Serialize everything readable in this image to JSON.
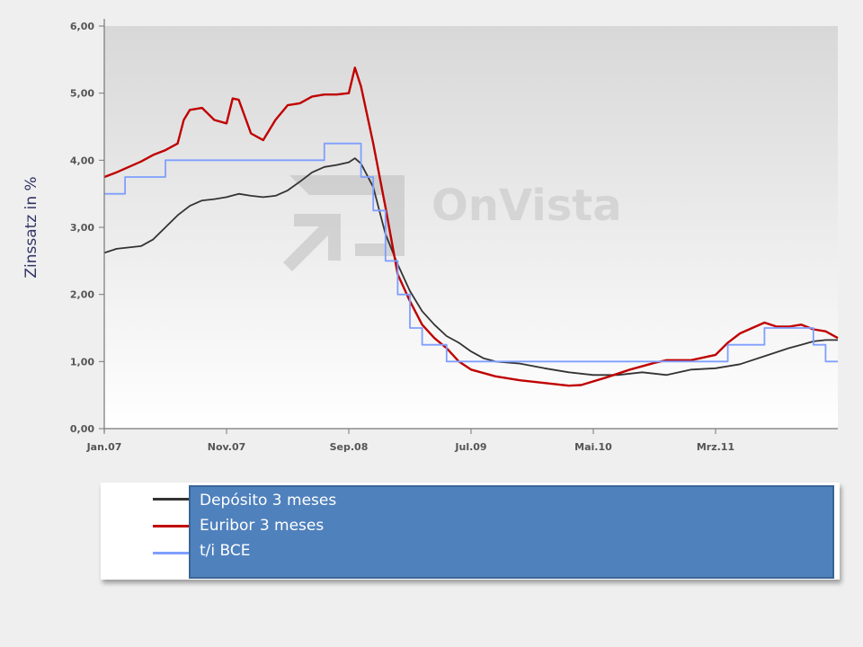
{
  "chart_data": {
    "type": "line",
    "ylabel": "Zinssatz in %",
    "ylim": [
      0,
      6
    ],
    "yticks": [
      "0,00",
      "1,00",
      "2,00",
      "3,00",
      "4,00",
      "5,00",
      "6,00"
    ],
    "xticks": [
      "Jan.07",
      "Nov.07",
      "Sep.08",
      "Jul.09",
      "Mai.10",
      "Mrz.11"
    ],
    "x_range_months": [
      0,
      60
    ],
    "grid": "off",
    "watermark": "OnVista",
    "series": [
      {
        "name": "Depósito 3 meses",
        "color": "#333333",
        "points": [
          [
            0,
            2.62
          ],
          [
            1,
            2.68
          ],
          [
            2,
            2.7
          ],
          [
            3,
            2.72
          ],
          [
            4,
            2.82
          ],
          [
            5,
            3.0
          ],
          [
            6,
            3.18
          ],
          [
            7,
            3.32
          ],
          [
            8,
            3.4
          ],
          [
            9,
            3.42
          ],
          [
            10,
            3.45
          ],
          [
            11,
            3.5
          ],
          [
            12,
            3.47
          ],
          [
            13,
            3.45
          ],
          [
            14,
            3.47
          ],
          [
            15,
            3.55
          ],
          [
            16,
            3.68
          ],
          [
            17,
            3.82
          ],
          [
            18,
            3.9
          ],
          [
            19,
            3.93
          ],
          [
            20,
            3.97
          ],
          [
            20.5,
            4.03
          ],
          [
            21,
            3.95
          ],
          [
            22,
            3.6
          ],
          [
            23,
            2.9
          ],
          [
            24,
            2.45
          ],
          [
            25,
            2.05
          ],
          [
            26,
            1.75
          ],
          [
            27,
            1.55
          ],
          [
            28,
            1.38
          ],
          [
            29,
            1.28
          ],
          [
            30,
            1.15
          ],
          [
            31,
            1.05
          ],
          [
            32,
            1.0
          ],
          [
            34,
            0.97
          ],
          [
            36,
            0.9
          ],
          [
            38,
            0.84
          ],
          [
            40,
            0.8
          ],
          [
            42,
            0.8
          ],
          [
            44,
            0.84
          ],
          [
            46,
            0.8
          ],
          [
            48,
            0.88
          ],
          [
            50,
            0.9
          ],
          [
            52,
            0.96
          ],
          [
            54,
            1.08
          ],
          [
            56,
            1.2
          ],
          [
            57,
            1.25
          ],
          [
            58,
            1.3
          ],
          [
            59,
            1.32
          ],
          [
            60,
            1.32
          ]
        ]
      },
      {
        "name": "Euribor 3 meses",
        "color": "#c00000",
        "points": [
          [
            0,
            3.75
          ],
          [
            1,
            3.82
          ],
          [
            2,
            3.9
          ],
          [
            3,
            3.98
          ],
          [
            4,
            4.08
          ],
          [
            5,
            4.15
          ],
          [
            6,
            4.25
          ],
          [
            6.5,
            4.6
          ],
          [
            7,
            4.75
          ],
          [
            8,
            4.78
          ],
          [
            9,
            4.6
          ],
          [
            10,
            4.55
          ],
          [
            10.5,
            4.92
          ],
          [
            11,
            4.9
          ],
          [
            12,
            4.4
          ],
          [
            13,
            4.3
          ],
          [
            14,
            4.6
          ],
          [
            15,
            4.82
          ],
          [
            16,
            4.85
          ],
          [
            17,
            4.95
          ],
          [
            18,
            4.98
          ],
          [
            19,
            4.98
          ],
          [
            20,
            5.0
          ],
          [
            20.5,
            5.38
          ],
          [
            21,
            5.1
          ],
          [
            22,
            4.25
          ],
          [
            23,
            3.3
          ],
          [
            24,
            2.3
          ],
          [
            25,
            1.9
          ],
          [
            26,
            1.55
          ],
          [
            27,
            1.35
          ],
          [
            28,
            1.2
          ],
          [
            29,
            1.0
          ],
          [
            30,
            0.88
          ],
          [
            32,
            0.78
          ],
          [
            34,
            0.72
          ],
          [
            36,
            0.68
          ],
          [
            38,
            0.64
          ],
          [
            39,
            0.65
          ],
          [
            41,
            0.76
          ],
          [
            43,
            0.88
          ],
          [
            45,
            0.98
          ],
          [
            46,
            1.02
          ],
          [
            48,
            1.02
          ],
          [
            50,
            1.1
          ],
          [
            51,
            1.28
          ],
          [
            52,
            1.42
          ],
          [
            53,
            1.5
          ],
          [
            54,
            1.58
          ],
          [
            55,
            1.52
          ],
          [
            56,
            1.52
          ],
          [
            57,
            1.55
          ],
          [
            58,
            1.48
          ],
          [
            59,
            1.45
          ],
          [
            60,
            1.35
          ]
        ]
      },
      {
        "name": "t/i BCE",
        "color": "#7f9fff",
        "points": [
          [
            0,
            3.5
          ],
          [
            1.7,
            3.5
          ],
          [
            1.7,
            3.75
          ],
          [
            5,
            3.75
          ],
          [
            5,
            4.0
          ],
          [
            18,
            4.0
          ],
          [
            18,
            4.25
          ],
          [
            21,
            4.25
          ],
          [
            21,
            3.75
          ],
          [
            22,
            3.75
          ],
          [
            22,
            3.25
          ],
          [
            23,
            3.25
          ],
          [
            23,
            2.5
          ],
          [
            24,
            2.5
          ],
          [
            24,
            2.0
          ],
          [
            25,
            2.0
          ],
          [
            25,
            1.5
          ],
          [
            26,
            1.5
          ],
          [
            26,
            1.25
          ],
          [
            28,
            1.25
          ],
          [
            28,
            1.0
          ],
          [
            51,
            1.0
          ],
          [
            51,
            1.25
          ],
          [
            54,
            1.25
          ],
          [
            54,
            1.5
          ],
          [
            58,
            1.5
          ],
          [
            58,
            1.25
          ],
          [
            59,
            1.25
          ],
          [
            59,
            1.0
          ],
          [
            60,
            1.0
          ]
        ]
      }
    ]
  },
  "legend": {
    "items": [
      {
        "label": "Depósito 3 meses",
        "color": "#333333"
      },
      {
        "label": "Euribor 3 meses",
        "color": "#c00000"
      },
      {
        "label": "t/i BCE",
        "color": "#7f9fff"
      }
    ]
  }
}
